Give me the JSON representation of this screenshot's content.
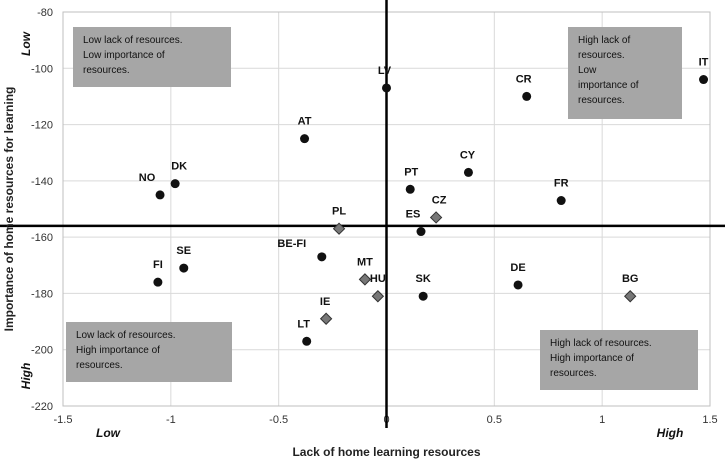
{
  "chart_data": {
    "type": "scatter",
    "xlabel": "Lack of home learning resources",
    "ylabel": "Importance of home resources for learning",
    "xlim": [
      -1.5,
      1.5
    ],
    "ylim": [
      -220,
      -80
    ],
    "x_ticks": [
      "-1.5",
      "-1",
      "-0.5",
      "0",
      "0.5",
      "1",
      "1.5"
    ],
    "y_ticks": [
      "-80",
      "-100",
      "-120",
      "-140",
      "-160",
      "-180",
      "-200",
      "-220"
    ],
    "x_tick_values": [
      -1.5,
      -1,
      -0.5,
      0,
      0.5,
      1,
      1.5
    ],
    "y_tick_values": [
      -80,
      -100,
      -120,
      -140,
      -160,
      -180,
      -200,
      -220
    ],
    "grid": true,
    "reference_lines": {
      "x": 0,
      "y": -156
    },
    "axis_annotations": {
      "x_low": "Low",
      "x_high": "High",
      "y_low": "Low",
      "y_high": "High"
    },
    "quadrant_labels": [
      {
        "id": "top-left",
        "lines": [
          "Low lack of resources.",
          "Low importance of",
          "resources."
        ]
      },
      {
        "id": "top-right",
        "lines": [
          "High lack of",
          "resources.",
          "Low",
          "importance of",
          "resources."
        ]
      },
      {
        "id": "bottom-left",
        "lines": [
          "Low lack of resources.",
          "High importance of",
          "resources."
        ]
      },
      {
        "id": "bottom-right",
        "lines": [
          "High lack of resources.",
          "High importance of",
          "resources."
        ]
      }
    ],
    "points": [
      {
        "label": "IT",
        "x": 1.47,
        "y": -104,
        "marker": "circle"
      },
      {
        "label": "CR",
        "x": 0.65,
        "y": -110,
        "marker": "circle"
      },
      {
        "label": "LV",
        "x": 0.0,
        "y": -107,
        "marker": "circle"
      },
      {
        "label": "AT",
        "x": -0.38,
        "y": -125,
        "marker": "circle"
      },
      {
        "label": "CY",
        "x": 0.38,
        "y": -137,
        "marker": "circle"
      },
      {
        "label": "PT",
        "x": 0.11,
        "y": -143,
        "marker": "circle"
      },
      {
        "label": "FR",
        "x": 0.81,
        "y": -147,
        "marker": "circle"
      },
      {
        "label": "DK",
        "x": -0.98,
        "y": -141,
        "marker": "circle"
      },
      {
        "label": "NO",
        "x": -1.05,
        "y": -145,
        "marker": "circle"
      },
      {
        "label": "CZ",
        "x": 0.23,
        "y": -153,
        "marker": "diamond"
      },
      {
        "label": "ES",
        "x": 0.16,
        "y": -158,
        "marker": "circle"
      },
      {
        "label": "PL",
        "x": -0.22,
        "y": -157,
        "marker": "diamond"
      },
      {
        "label": "BE-FI",
        "x": -0.3,
        "y": -167,
        "marker": "circle"
      },
      {
        "label": "SE",
        "x": -0.94,
        "y": -171,
        "marker": "circle"
      },
      {
        "label": "FI",
        "x": -1.06,
        "y": -176,
        "marker": "circle"
      },
      {
        "label": "MT",
        "x": -0.1,
        "y": -175,
        "marker": "diamond"
      },
      {
        "label": "HU",
        "x": -0.04,
        "y": -181,
        "marker": "diamond"
      },
      {
        "label": "SK",
        "x": 0.17,
        "y": -181,
        "marker": "circle"
      },
      {
        "label": "DE",
        "x": 0.61,
        "y": -177,
        "marker": "circle"
      },
      {
        "label": "BG",
        "x": 1.13,
        "y": -181,
        "marker": "diamond"
      },
      {
        "label": "IE",
        "x": -0.28,
        "y": -189,
        "marker": "diamond"
      },
      {
        "label": "LT",
        "x": -0.37,
        "y": -197,
        "marker": "circle"
      }
    ],
    "colors": {
      "circle": "#111111",
      "diamond": "#777777",
      "box_fill": "#a6a6a6",
      "grid": "#d9d9d9"
    }
  }
}
